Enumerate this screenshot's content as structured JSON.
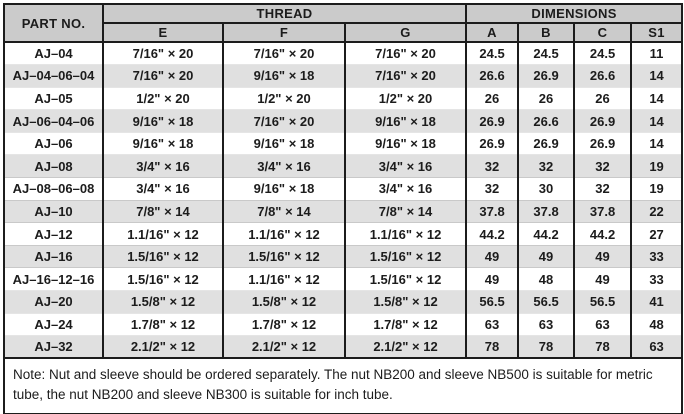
{
  "colors": {
    "header_bg": "#cbcbcb",
    "row_alt_bg": "#e0e0e0",
    "border": "#1c1c1c",
    "text": "#1c1c1c"
  },
  "table": {
    "header": {
      "part_no": "PART NO.",
      "groups": [
        {
          "label": "THREAD",
          "span": 3
        },
        {
          "label": "DIMENSIONS",
          "span": 4
        }
      ],
      "sub_columns": [
        "E",
        "F",
        "G",
        "A",
        "B",
        "C",
        "S1"
      ]
    },
    "rows": [
      [
        "AJ–04",
        "7/16\" × 20",
        "7/16\" × 20",
        "7/16\" × 20",
        "24.5",
        "24.5",
        "24.5",
        "11"
      ],
      [
        "AJ–04–06–04",
        "7/16\" × 20",
        "9/16\" × 18",
        "7/16\" × 20",
        "26.6",
        "26.9",
        "26.6",
        "14"
      ],
      [
        "AJ–05",
        "1/2\" × 20",
        "1/2\" × 20",
        "1/2\" × 20",
        "26",
        "26",
        "26",
        "14"
      ],
      [
        "AJ–06–04–06",
        "9/16\" × 18",
        "7/16\" × 20",
        "9/16\" × 18",
        "26.9",
        "26.6",
        "26.9",
        "14"
      ],
      [
        "AJ–06",
        "9/16\" × 18",
        "9/16\" × 18",
        "9/16\" × 18",
        "26.9",
        "26.9",
        "26.9",
        "14"
      ],
      [
        "AJ–08",
        "3/4\" × 16",
        "3/4\" × 16",
        "3/4\" × 16",
        "32",
        "32",
        "32",
        "19"
      ],
      [
        "AJ–08–06–08",
        "3/4\" × 16",
        "9/16\" × 18",
        "3/4\" × 16",
        "32",
        "30",
        "32",
        "19"
      ],
      [
        "AJ–10",
        "7/8\" × 14",
        "7/8\" × 14",
        "7/8\" × 14",
        "37.8",
        "37.8",
        "37.8",
        "22"
      ],
      [
        "AJ–12",
        "1.1/16\" × 12",
        "1.1/16\" × 12",
        "1.1/16\" × 12",
        "44.2",
        "44.2",
        "44.2",
        "27"
      ],
      [
        "AJ–16",
        "1.5/16\" × 12",
        "1.5/16\" × 12",
        "1.5/16\" × 12",
        "49",
        "49",
        "49",
        "33"
      ],
      [
        "AJ–16–12–16",
        "1.5/16\" × 12",
        "1.1/16\" × 12",
        "1.5/16\" × 12",
        "49",
        "48",
        "49",
        "33"
      ],
      [
        "AJ–20",
        "1.5/8\" × 12",
        "1.5/8\" × 12",
        "1.5/8\" × 12",
        "56.5",
        "56.5",
        "56.5",
        "41"
      ],
      [
        "AJ–24",
        "1.7/8\" × 12",
        "1.7/8\" × 12",
        "1.7/8\" × 12",
        "63",
        "63",
        "63",
        "48"
      ],
      [
        "AJ–32",
        "2.1/2\" × 12",
        "2.1/2\" × 12",
        "2.1/2\" × 12",
        "78",
        "78",
        "78",
        "63"
      ]
    ],
    "note": "Note: Nut and sleeve should be ordered separately. The nut NB200 and sleeve NB500 is suitable for metric tube, the nut NB200 and sleeve NB300 is suitable for inch tube."
  }
}
